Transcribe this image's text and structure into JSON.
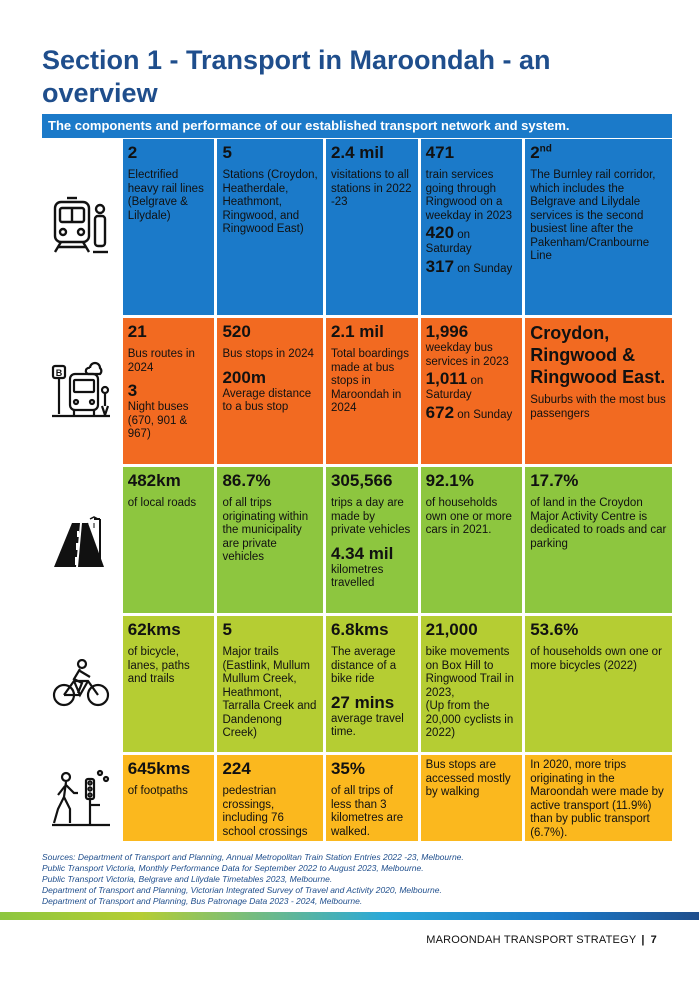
{
  "title": "Section 1 - Transport in Maroondah - an overview",
  "subheading": "The components and performance of our established transport network and system.",
  "rows": {
    "train": {
      "icon": "train-icon",
      "c1": {
        "big": "2",
        "text": "Electrified heavy rail lines (Belgrave & Lilydale)"
      },
      "c2": {
        "big": "5",
        "text": "Stations (Croydon, Heatherdale, Heathmont, Ringwood, and Ringwood East)"
      },
      "c3": {
        "big": "2.4 mil",
        "text": "visitations to all stations in 2022 -23"
      },
      "c4": {
        "big": "471",
        "text": "train services going through Ringwood on a weekday in 2023",
        "big2": "420",
        "suffix2": " on Saturday",
        "big3": "317",
        "suffix3": " on Sunday"
      },
      "c5": {
        "big": "2",
        "sup": "nd",
        "text": "The Burnley rail corridor, which includes the Belgrave and Lilydale services is the second busiest line after the Pakenham/Cranbourne Line"
      }
    },
    "bus": {
      "icon": "bus-icon",
      "c1": {
        "big": "21",
        "text": "Bus routes in 2024",
        "big2": "3",
        "text2": "Night buses",
        "text3": "(670, 901 & 967)"
      },
      "c2": {
        "big": "520",
        "text": "Bus stops in 2024",
        "big2": "200m",
        "text2": "Average distance to a bus stop"
      },
      "c3": {
        "big": "2.1 mil",
        "text": "Total boardings made at bus stops in Maroondah in 2024"
      },
      "c4": {
        "big": "1,996",
        "text": "weekday bus services in 2023",
        "big2": "1,011",
        "suffix2": " on Saturday",
        "big3": "672",
        "suffix3": " on Sunday"
      },
      "c5": {
        "big": "Croydon, Ringwood & Ringwood East.",
        "text": "Suburbs with the most bus passengers"
      }
    },
    "road": {
      "icon": "road-icon",
      "c1": {
        "big": "482km",
        "text": "of local roads"
      },
      "c2": {
        "big": "86.7%",
        "text": "of all trips originating within the municipality are private vehicles"
      },
      "c3": {
        "big": "305,566",
        "text": "trips a day are made by private vehicles",
        "big2": "4.34 mil",
        "text2": "kilometres travelled"
      },
      "c4": {
        "big": "92.1%",
        "text": "of households own one or more cars in 2021."
      },
      "c5": {
        "big": "17.7%",
        "text": "of land in the Croydon Major Activity Centre is dedicated to roads and car parking"
      }
    },
    "bike": {
      "icon": "bicycle-icon",
      "c1": {
        "big": "62kms",
        "text": "of bicycle, lanes, paths and trails"
      },
      "c2": {
        "big": "5",
        "text": "Major trails (Eastlink, Mullum Mullum Creek, Heathmont, Tarralla Creek and Dandenong Creek)"
      },
      "c3": {
        "big": "6.8kms",
        "text": "The average distance of a bike ride",
        "big2": "27 mins",
        "text2": "average travel time."
      },
      "c4": {
        "big": "21,000",
        "text": "bike movements on Box Hill to Ringwood Trail in 2023,",
        "text2": "(Up from the 20,000 cyclists in 2022)"
      },
      "c5": {
        "big": "53.6%",
        "text": "of households own one or more bicycles (2022)"
      }
    },
    "walk": {
      "icon": "pedestrian-icon",
      "c1": {
        "big": "645kms",
        "text": "of footpaths"
      },
      "c2": {
        "big": "224",
        "text": "pedestrian crossings, including 76 school crossings"
      },
      "c3": {
        "big": "35%",
        "text": "of all trips of less than 3 kilometres are walked."
      },
      "c4": {
        "text": "Bus stops are accessed mostly by walking"
      },
      "c5": {
        "text": "In 2020, more trips originating in the Maroondah were made by active transport (11.9%) than by public transport (6.7%)."
      }
    }
  },
  "sources": [
    "Sources: Department of Transport and Planning, Annual Metropolitan Train Station Entries 2022 -23, Melbourne.",
    "Public Transport Victoria, Monthly Performance Data for September 2022 to August 2023, Melbourne.",
    "Public Transport Victoria, Belgrave and Lilydale Timetables 2023, Melbourne.",
    "Department of Transport and Planning, Victorian Integrated Survey of Travel and Activity 2020, Melbourne.",
    "Department of Transport and Planning, Bus Patronage Data 2023 - 2024, Melbourne."
  ],
  "footer": {
    "text": "MAROONDAH TRANSPORT STRATEGY",
    "separator": "|",
    "page": "7"
  },
  "colors": {
    "title": "#1f4e8c",
    "blue": "#1b7ac9",
    "orange": "#f26a21",
    "green": "#8dc63f",
    "lime": "#b5cd33",
    "yellow": "#fbb81e"
  }
}
